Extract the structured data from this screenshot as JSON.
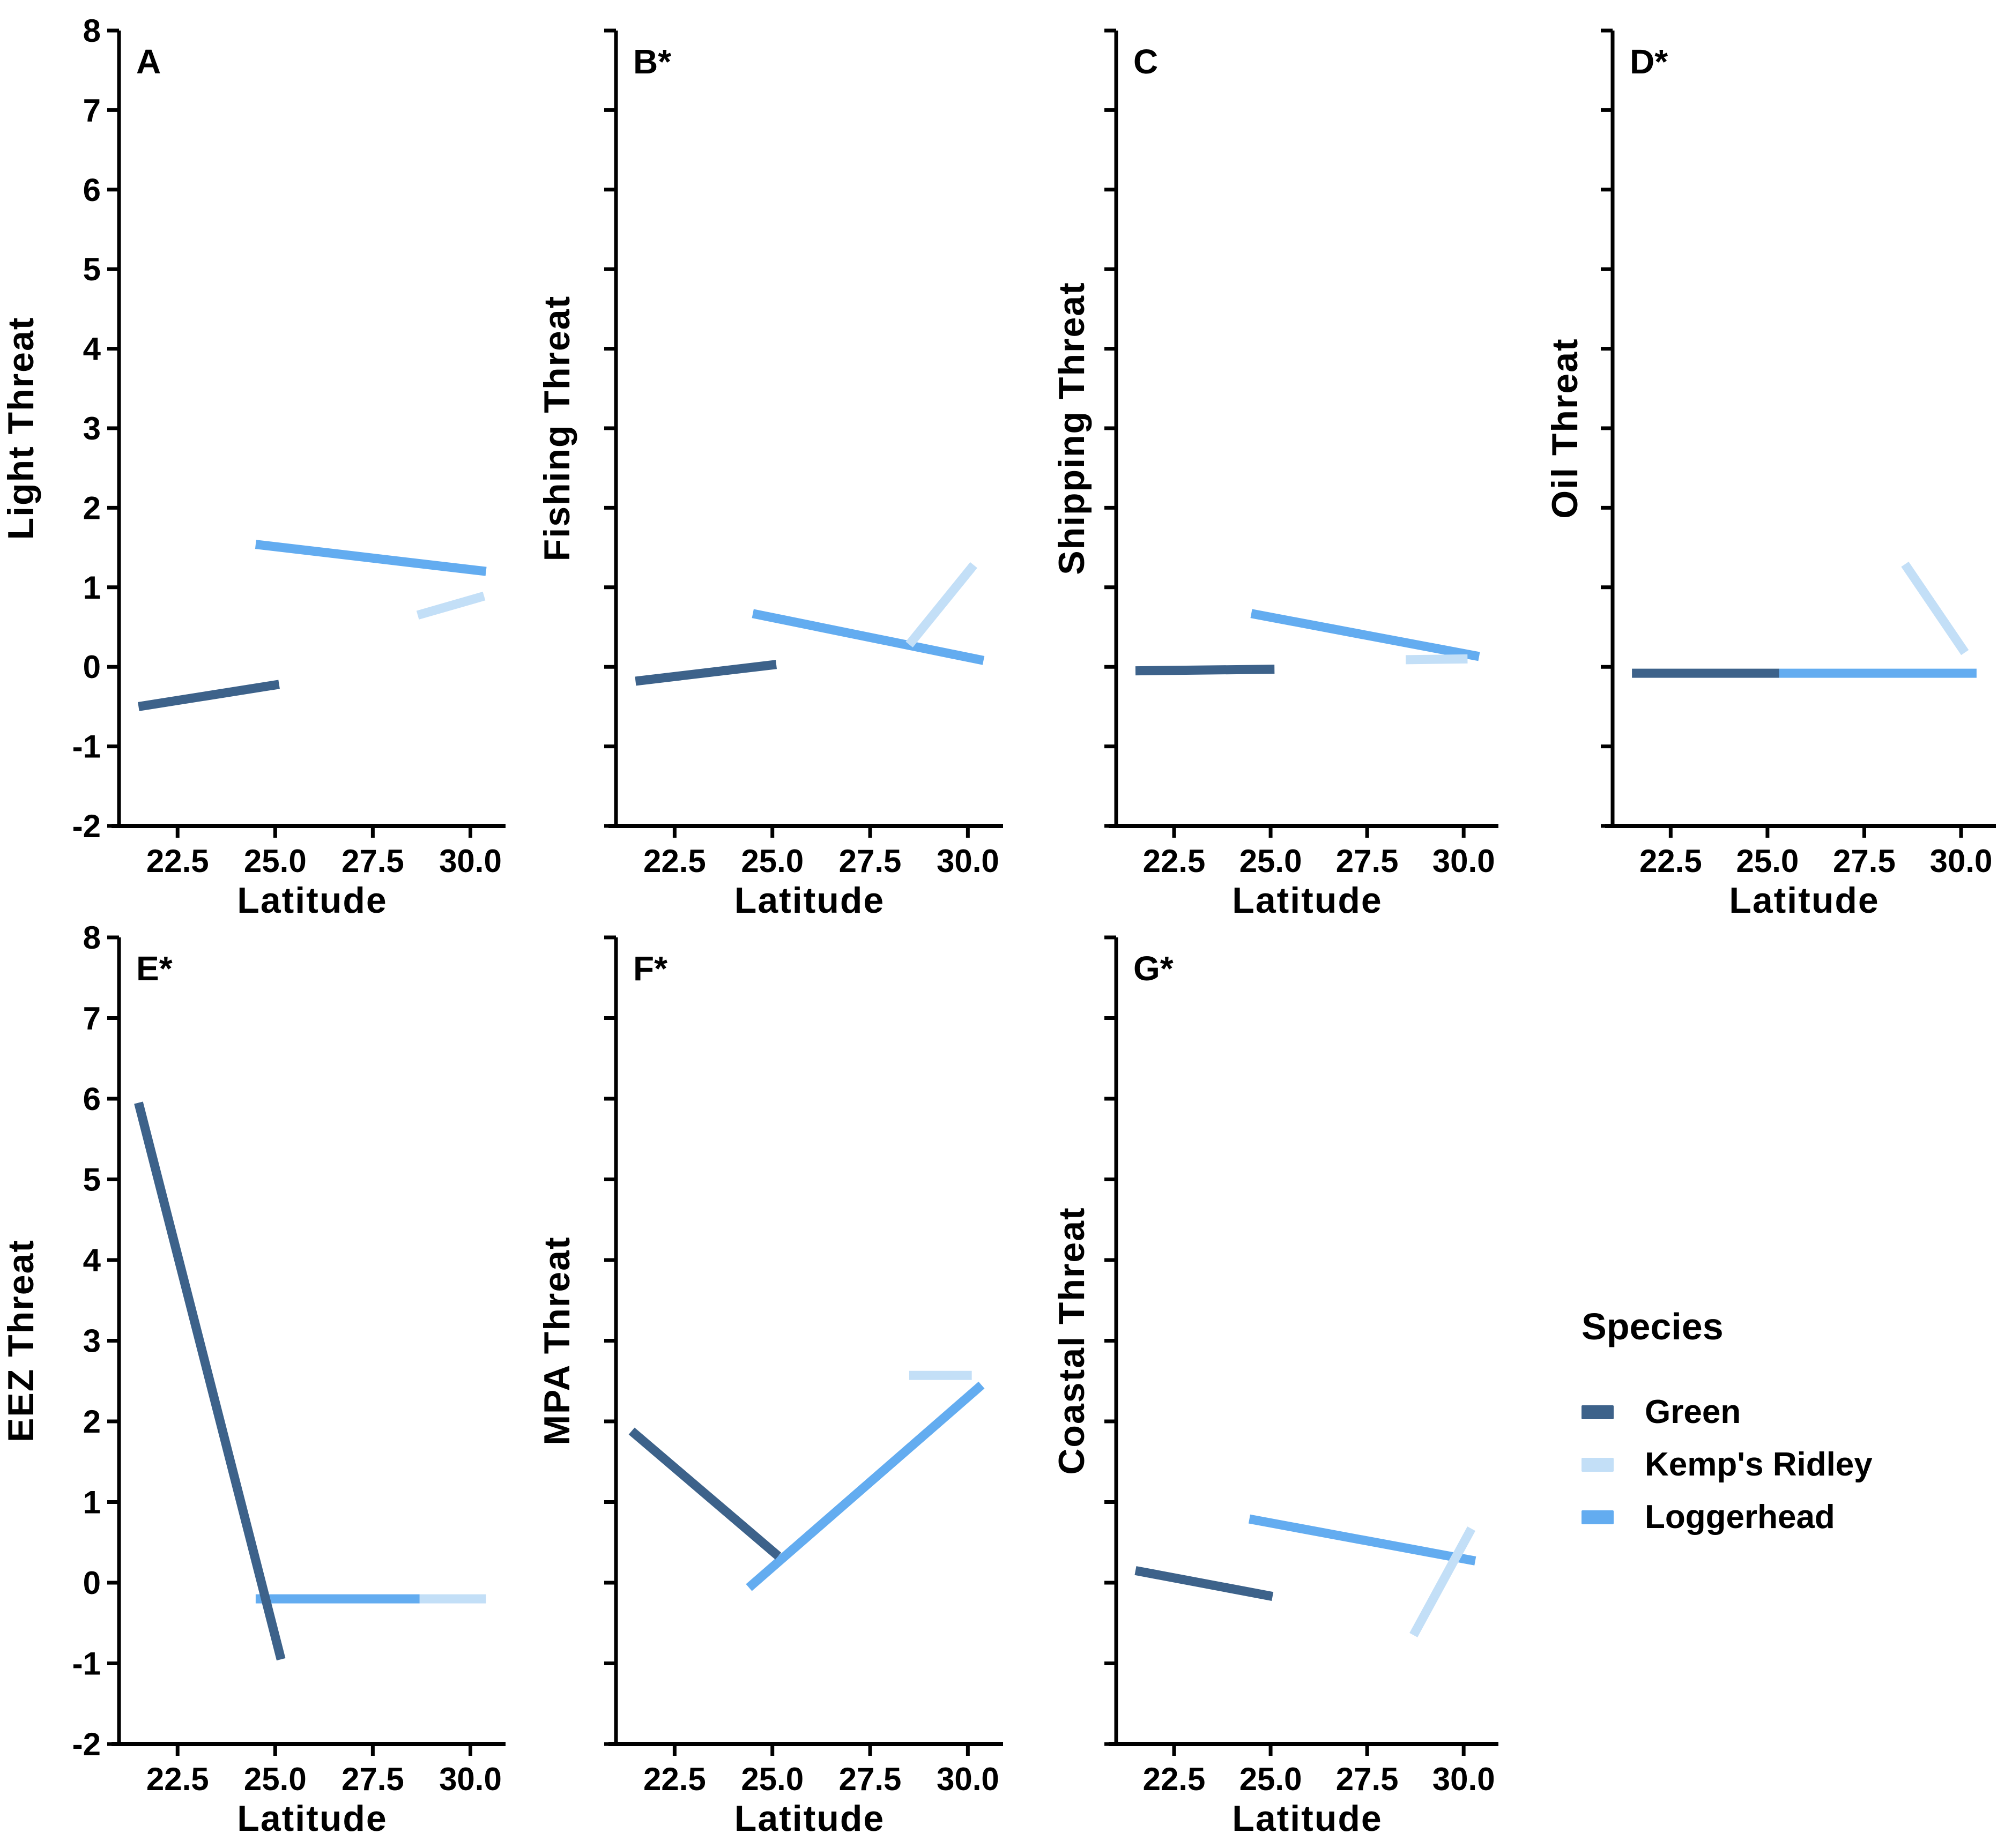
{
  "figure": {
    "description": "Seven-panel faceted line chart of modeled threat indices versus latitude for three sea turtle species; panels labeled A-G, asterisks marking significant panels",
    "background": "#ffffff",
    "text_color": "#000000"
  },
  "axes": {
    "xlabel": "Latitude",
    "x_tick_labels": [
      "22.5",
      "25.0",
      "27.5",
      "30.0"
    ],
    "x_tick_values": [
      22.5,
      25.0,
      27.5,
      30.0
    ],
    "xlim": [
      21.0,
      30.9
    ],
    "ylim": [
      -2,
      8
    ],
    "y_tick_values": [
      -2,
      -1,
      0,
      1,
      2,
      3,
      4,
      5,
      6,
      7,
      8
    ],
    "grid": "off",
    "tick_style": "outward black ticks, labels only on first panel of each row"
  },
  "legend": {
    "title": "Species",
    "position": "right of bottom row",
    "entries": [
      {
        "label": "Green",
        "color": "#3D628A"
      },
      {
        "label": "Kemp's Ridley",
        "color": "#C3DFF7"
      },
      {
        "label": "Loggerhead",
        "color": "#63ACF0"
      }
    ]
  },
  "chart_data": [
    {
      "type": "line",
      "panel_label": "A",
      "ylabel": "Light Threat",
      "xlabel": "Latitude",
      "show_y_tick_labels": true,
      "series": [
        {
          "name": "Green",
          "x": [
            21.5,
            25.1
          ],
          "y": [
            -0.5,
            -0.22
          ]
        },
        {
          "name": "Kemp's Ridley",
          "x": [
            28.65,
            30.35
          ],
          "y": [
            0.65,
            0.89
          ]
        },
        {
          "name": "Loggerhead",
          "x": [
            24.5,
            30.4
          ],
          "y": [
            1.54,
            1.2
          ]
        }
      ]
    },
    {
      "type": "line",
      "panel_label": "B*",
      "ylabel": "Fishing Threat",
      "xlabel": "Latitude",
      "show_y_tick_labels": false,
      "series": [
        {
          "name": "Green",
          "x": [
            21.5,
            25.1
          ],
          "y": [
            -0.18,
            0.03
          ]
        },
        {
          "name": "Kemp's Ridley",
          "x": [
            28.5,
            30.15
          ],
          "y": [
            0.28,
            1.28
          ]
        },
        {
          "name": "Loggerhead",
          "x": [
            24.5,
            30.4
          ],
          "y": [
            0.67,
            0.08
          ]
        }
      ]
    },
    {
      "type": "line",
      "panel_label": "C",
      "ylabel": "Shipping Threat",
      "xlabel": "Latitude",
      "show_y_tick_labels": false,
      "series": [
        {
          "name": "Green",
          "x": [
            21.5,
            25.1
          ],
          "y": [
            -0.05,
            -0.03
          ]
        },
        {
          "name": "Kemp's Ridley",
          "x": [
            28.5,
            30.1
          ],
          "y": [
            0.09,
            0.1
          ]
        },
        {
          "name": "Loggerhead",
          "x": [
            24.5,
            30.4
          ],
          "y": [
            0.67,
            0.13
          ]
        }
      ]
    },
    {
      "type": "line",
      "panel_label": "D*",
      "ylabel": "Oil Threat",
      "xlabel": "Latitude",
      "show_y_tick_labels": false,
      "series": [
        {
          "name": "Green",
          "x": [
            21.5,
            25.3
          ],
          "y": [
            -0.08,
            -0.08
          ]
        },
        {
          "name": "Kemp's Ridley",
          "x": [
            28.55,
            30.1
          ],
          "y": [
            1.29,
            0.18
          ]
        },
        {
          "name": "Loggerhead",
          "x": [
            25.3,
            30.4
          ],
          "y": [
            -0.08,
            -0.08
          ]
        }
      ]
    },
    {
      "type": "line",
      "panel_label": "E*",
      "ylabel": "EEZ Threat",
      "xlabel": "Latitude",
      "show_y_tick_labels": true,
      "series": [
        {
          "name": "Green",
          "x": [
            21.5,
            25.15
          ],
          "y": [
            5.95,
            -0.95
          ]
        },
        {
          "name": "Kemp's Ridley",
          "x": [
            28.7,
            30.4
          ],
          "y": [
            -0.2,
            -0.2
          ]
        },
        {
          "name": "Loggerhead",
          "x": [
            24.5,
            28.7
          ],
          "y": [
            -0.2,
            -0.2
          ]
        }
      ]
    },
    {
      "type": "line",
      "panel_label": "F*",
      "ylabel": "MPA Threat",
      "xlabel": "Latitude",
      "show_y_tick_labels": false,
      "series": [
        {
          "name": "Green",
          "x": [
            21.4,
            25.15
          ],
          "y": [
            1.88,
            0.33
          ]
        },
        {
          "name": "Kemp's Ridley",
          "x": [
            28.5,
            30.1
          ],
          "y": [
            2.57,
            2.57
          ]
        },
        {
          "name": "Loggerhead",
          "x": [
            24.4,
            30.35
          ],
          "y": [
            -0.06,
            2.45
          ]
        }
      ]
    },
    {
      "type": "line",
      "panel_label": "G*",
      "ylabel": "Coastal Threat",
      "xlabel": "Latitude",
      "show_y_tick_labels": false,
      "series": [
        {
          "name": "Green",
          "x": [
            21.5,
            25.05
          ],
          "y": [
            0.15,
            -0.17
          ]
        },
        {
          "name": "Kemp's Ridley",
          "x": [
            28.7,
            30.2
          ],
          "y": [
            -0.65,
            0.67
          ]
        },
        {
          "name": "Loggerhead",
          "x": [
            24.45,
            30.3
          ],
          "y": [
            0.79,
            0.27
          ]
        }
      ]
    }
  ]
}
